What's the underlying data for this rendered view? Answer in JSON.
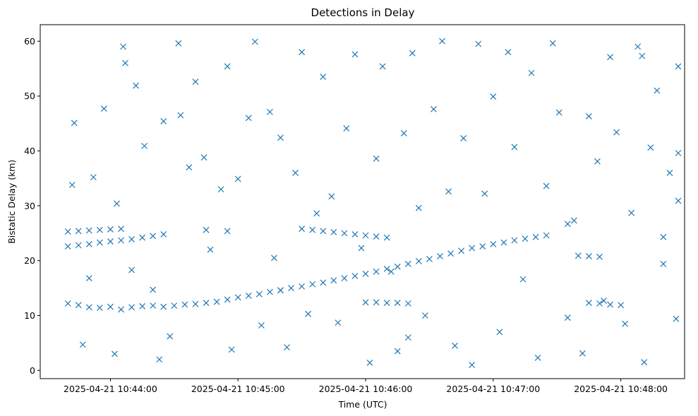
{
  "chart_data": {
    "type": "scatter",
    "title": "Detections in Delay",
    "xlabel": "Time (UTC)",
    "ylabel": "Bistatic Delay (km)",
    "marker": "x",
    "color": "#1f77b4",
    "xlim": [
      "2025-04-21 10:43:27",
      "2025-04-21 10:48:30"
    ],
    "ylim": [
      -1.5,
      63
    ],
    "x_ticks": [
      {
        "value": "2025-04-21 10:44:00",
        "label": "2025-04-21 10:44:00"
      },
      {
        "value": "2025-04-21 10:45:00",
        "label": "2025-04-21 10:45:00"
      },
      {
        "value": "2025-04-21 10:46:00",
        "label": "2025-04-21 10:46:00"
      },
      {
        "value": "2025-04-21 10:47:00",
        "label": "2025-04-21 10:47:00"
      },
      {
        "value": "2025-04-21 10:48:00",
        "label": "2025-04-21 10:48:00"
      }
    ],
    "y_ticks": [
      0,
      10,
      20,
      30,
      40,
      50,
      60
    ],
    "grid": false,
    "series": [
      {
        "name": "",
        "points": [
          [
            "2025-04-21 10:43:40",
            12.2
          ],
          [
            "2025-04-21 10:43:45",
            11.9
          ],
          [
            "2025-04-21 10:43:50",
            11.5
          ],
          [
            "2025-04-21 10:43:55",
            11.4
          ],
          [
            "2025-04-21 10:44:00",
            11.6
          ],
          [
            "2025-04-21 10:44:05",
            11.1
          ],
          [
            "2025-04-21 10:44:10",
            11.5
          ],
          [
            "2025-04-21 10:44:15",
            11.7
          ],
          [
            "2025-04-21 10:44:20",
            11.8
          ],
          [
            "2025-04-21 10:44:25",
            11.6
          ],
          [
            "2025-04-21 10:44:30",
            11.8
          ],
          [
            "2025-04-21 10:44:35",
            12.0
          ],
          [
            "2025-04-21 10:44:40",
            12.1
          ],
          [
            "2025-04-21 10:44:45",
            12.3
          ],
          [
            "2025-04-21 10:44:50",
            12.5
          ],
          [
            "2025-04-21 10:44:55",
            12.9
          ],
          [
            "2025-04-21 10:45:00",
            13.3
          ],
          [
            "2025-04-21 10:45:05",
            13.6
          ],
          [
            "2025-04-21 10:45:10",
            13.9
          ],
          [
            "2025-04-21 10:45:15",
            14.3
          ],
          [
            "2025-04-21 10:45:20",
            14.6
          ],
          [
            "2025-04-21 10:45:25",
            15.0
          ],
          [
            "2025-04-21 10:45:30",
            15.3
          ],
          [
            "2025-04-21 10:45:35",
            15.7
          ],
          [
            "2025-04-21 10:45:40",
            16.0
          ],
          [
            "2025-04-21 10:45:45",
            16.4
          ],
          [
            "2025-04-21 10:45:50",
            16.8
          ],
          [
            "2025-04-21 10:45:55",
            17.2
          ],
          [
            "2025-04-21 10:46:00",
            17.6
          ],
          [
            "2025-04-21 10:46:05",
            18.0
          ],
          [
            "2025-04-21 10:46:10",
            18.5
          ],
          [
            "2025-04-21 10:46:15",
            18.9
          ],
          [
            "2025-04-21 10:46:20",
            19.4
          ],
          [
            "2025-04-21 10:46:25",
            19.9
          ],
          [
            "2025-04-21 10:46:30",
            20.3
          ],
          [
            "2025-04-21 10:46:35",
            20.8
          ],
          [
            "2025-04-21 10:46:40",
            21.3
          ],
          [
            "2025-04-21 10:46:45",
            21.8
          ],
          [
            "2025-04-21 10:46:50",
            22.3
          ],
          [
            "2025-04-21 10:46:55",
            22.6
          ],
          [
            "2025-04-21 10:47:00",
            23.0
          ],
          [
            "2025-04-21 10:47:05",
            23.3
          ],
          [
            "2025-04-21 10:47:10",
            23.7
          ],
          [
            "2025-04-21 10:47:15",
            24.0
          ],
          [
            "2025-04-21 10:47:20",
            24.3
          ],
          [
            "2025-04-21 10:47:25",
            24.6
          ],
          [
            "2025-04-21 10:43:40",
            22.6
          ],
          [
            "2025-04-21 10:43:45",
            22.8
          ],
          [
            "2025-04-21 10:43:50",
            23.0
          ],
          [
            "2025-04-21 10:43:55",
            23.3
          ],
          [
            "2025-04-21 10:44:00",
            23.5
          ],
          [
            "2025-04-21 10:44:05",
            23.7
          ],
          [
            "2025-04-21 10:44:10",
            23.9
          ],
          [
            "2025-04-21 10:44:15",
            24.2
          ],
          [
            "2025-04-21 10:44:20",
            24.5
          ],
          [
            "2025-04-21 10:44:25",
            24.8
          ],
          [
            "2025-04-21 10:43:40",
            25.3
          ],
          [
            "2025-04-21 10:43:45",
            25.4
          ],
          [
            "2025-04-21 10:43:50",
            25.5
          ],
          [
            "2025-04-21 10:43:55",
            25.6
          ],
          [
            "2025-04-21 10:44:00",
            25.7
          ],
          [
            "2025-04-21 10:44:05",
            25.8
          ],
          [
            "2025-04-21 10:44:45",
            25.6
          ],
          [
            "2025-04-21 10:44:55",
            25.4
          ],
          [
            "2025-04-21 10:45:30",
            25.8
          ],
          [
            "2025-04-21 10:45:35",
            25.6
          ],
          [
            "2025-04-21 10:45:40",
            25.4
          ],
          [
            "2025-04-21 10:45:45",
            25.2
          ],
          [
            "2025-04-21 10:45:50",
            25.0
          ],
          [
            "2025-04-21 10:45:55",
            24.8
          ],
          [
            "2025-04-21 10:46:00",
            24.6
          ],
          [
            "2025-04-21 10:46:05",
            24.4
          ],
          [
            "2025-04-21 10:46:10",
            24.2
          ],
          [
            "2025-04-21 10:46:00",
            12.4
          ],
          [
            "2025-04-21 10:46:05",
            12.4
          ],
          [
            "2025-04-21 10:46:10",
            12.3
          ],
          [
            "2025-04-21 10:46:15",
            12.3
          ],
          [
            "2025-04-21 10:46:20",
            12.2
          ],
          [
            "2025-04-21 10:47:40",
            20.9
          ],
          [
            "2025-04-21 10:47:45",
            20.8
          ],
          [
            "2025-04-21 10:47:50",
            20.7
          ],
          [
            "2025-04-21 10:47:45",
            12.3
          ],
          [
            "2025-04-21 10:47:50",
            12.2
          ],
          [
            "2025-04-21 10:47:55",
            12.0
          ],
          [
            "2025-04-21 10:48:00",
            11.9
          ],
          [
            "2025-04-21 10:43:42",
            33.8
          ],
          [
            "2025-04-21 10:43:43",
            45.1
          ],
          [
            "2025-04-21 10:43:47",
            4.7
          ],
          [
            "2025-04-21 10:43:50",
            16.8
          ],
          [
            "2025-04-21 10:43:52",
            35.2
          ],
          [
            "2025-04-21 10:43:57",
            47.7
          ],
          [
            "2025-04-21 10:44:02",
            3.0
          ],
          [
            "2025-04-21 10:44:03",
            30.4
          ],
          [
            "2025-04-21 10:44:06",
            59.0
          ],
          [
            "2025-04-21 10:44:07",
            56.0
          ],
          [
            "2025-04-21 10:44:10",
            18.3
          ],
          [
            "2025-04-21 10:44:12",
            51.9
          ],
          [
            "2025-04-21 10:44:16",
            40.9
          ],
          [
            "2025-04-21 10:44:20",
            14.7
          ],
          [
            "2025-04-21 10:44:23",
            2.0
          ],
          [
            "2025-04-21 10:44:25",
            45.4
          ],
          [
            "2025-04-21 10:44:28",
            6.2
          ],
          [
            "2025-04-21 10:44:32",
            59.6
          ],
          [
            "2025-04-21 10:44:33",
            46.5
          ],
          [
            "2025-04-21 10:44:37",
            37.0
          ],
          [
            "2025-04-21 10:44:40",
            52.6
          ],
          [
            "2025-04-21 10:44:44",
            38.8
          ],
          [
            "2025-04-21 10:44:47",
            22.0
          ],
          [
            "2025-04-21 10:44:52",
            33.0
          ],
          [
            "2025-04-21 10:44:55",
            55.4
          ],
          [
            "2025-04-21 10:44:57",
            3.8
          ],
          [
            "2025-04-21 10:45:00",
            34.9
          ],
          [
            "2025-04-21 10:45:05",
            46.0
          ],
          [
            "2025-04-21 10:45:08",
            59.9
          ],
          [
            "2025-04-21 10:45:11",
            8.2
          ],
          [
            "2025-04-21 10:45:15",
            47.1
          ],
          [
            "2025-04-21 10:45:17",
            20.5
          ],
          [
            "2025-04-21 10:45:20",
            42.4
          ],
          [
            "2025-04-21 10:45:23",
            4.2
          ],
          [
            "2025-04-21 10:45:27",
            36.0
          ],
          [
            "2025-04-21 10:45:30",
            58.0
          ],
          [
            "2025-04-21 10:45:33",
            10.3
          ],
          [
            "2025-04-21 10:45:37",
            28.6
          ],
          [
            "2025-04-21 10:45:40",
            53.5
          ],
          [
            "2025-04-21 10:45:44",
            31.7
          ],
          [
            "2025-04-21 10:45:47",
            8.7
          ],
          [
            "2025-04-21 10:45:51",
            44.1
          ],
          [
            "2025-04-21 10:45:55",
            57.6
          ],
          [
            "2025-04-21 10:45:58",
            22.3
          ],
          [
            "2025-04-21 10:46:02",
            1.4
          ],
          [
            "2025-04-21 10:46:05",
            38.6
          ],
          [
            "2025-04-21 10:46:08",
            55.4
          ],
          [
            "2025-04-21 10:46:12",
            18.0
          ],
          [
            "2025-04-21 10:46:15",
            3.5
          ],
          [
            "2025-04-21 10:46:18",
            43.2
          ],
          [
            "2025-04-21 10:46:22",
            57.8
          ],
          [
            "2025-04-21 10:46:25",
            29.6
          ],
          [
            "2025-04-21 10:46:28",
            10.0
          ],
          [
            "2025-04-21 10:46:32",
            47.6
          ],
          [
            "2025-04-21 10:46:36",
            60.0
          ],
          [
            "2025-04-21 10:46:39",
            32.6
          ],
          [
            "2025-04-21 10:46:42",
            4.5
          ],
          [
            "2025-04-21 10:46:46",
            42.3
          ],
          [
            "2025-04-21 10:46:50",
            1.0
          ],
          [
            "2025-04-21 10:46:53",
            59.5
          ],
          [
            "2025-04-21 10:46:56",
            32.2
          ],
          [
            "2025-04-21 10:47:00",
            49.9
          ],
          [
            "2025-04-21 10:47:03",
            7.0
          ],
          [
            "2025-04-21 10:47:07",
            58.0
          ],
          [
            "2025-04-21 10:47:10",
            40.7
          ],
          [
            "2025-04-21 10:47:14",
            16.6
          ],
          [
            "2025-04-21 10:47:18",
            54.2
          ],
          [
            "2025-04-21 10:47:21",
            2.3
          ],
          [
            "2025-04-21 10:47:25",
            33.6
          ],
          [
            "2025-04-21 10:47:28",
            59.6
          ],
          [
            "2025-04-21 10:47:31",
            47.0
          ],
          [
            "2025-04-21 10:47:35",
            9.6
          ],
          [
            "2025-04-21 10:47:38",
            27.3
          ],
          [
            "2025-04-21 10:47:42",
            3.1
          ],
          [
            "2025-04-21 10:47:45",
            46.3
          ],
          [
            "2025-04-21 10:47:49",
            38.1
          ],
          [
            "2025-04-21 10:47:52",
            12.7
          ],
          [
            "2025-04-21 10:47:55",
            57.1
          ],
          [
            "2025-04-21 10:47:58",
            43.4
          ],
          [
            "2025-04-21 10:48:02",
            8.5
          ],
          [
            "2025-04-21 10:48:05",
            28.7
          ],
          [
            "2025-04-21 10:48:08",
            59.0
          ],
          [
            "2025-04-21 10:48:11",
            1.5
          ],
          [
            "2025-04-21 10:48:14",
            40.6
          ],
          [
            "2025-04-21 10:48:17",
            51.0
          ],
          [
            "2025-04-21 10:48:20",
            24.3
          ],
          [
            "2025-04-21 10:48:23",
            36.0
          ],
          [
            "2025-04-21 10:48:26",
            9.4
          ],
          [
            "2025-04-21 10:48:27",
            55.4
          ],
          [
            "2025-04-21 10:48:27",
            30.9
          ],
          [
            "2025-04-21 10:48:27",
            39.6
          ],
          [
            "2025-04-21 10:48:20",
            19.4
          ],
          [
            "2025-04-21 10:48:10",
            57.3
          ],
          [
            "2025-04-21 10:47:35",
            26.7
          ],
          [
            "2025-04-21 10:46:20",
            6.0
          ],
          [
            "2025-04-21 10:45:20",
            14.6
          ]
        ]
      }
    ]
  }
}
